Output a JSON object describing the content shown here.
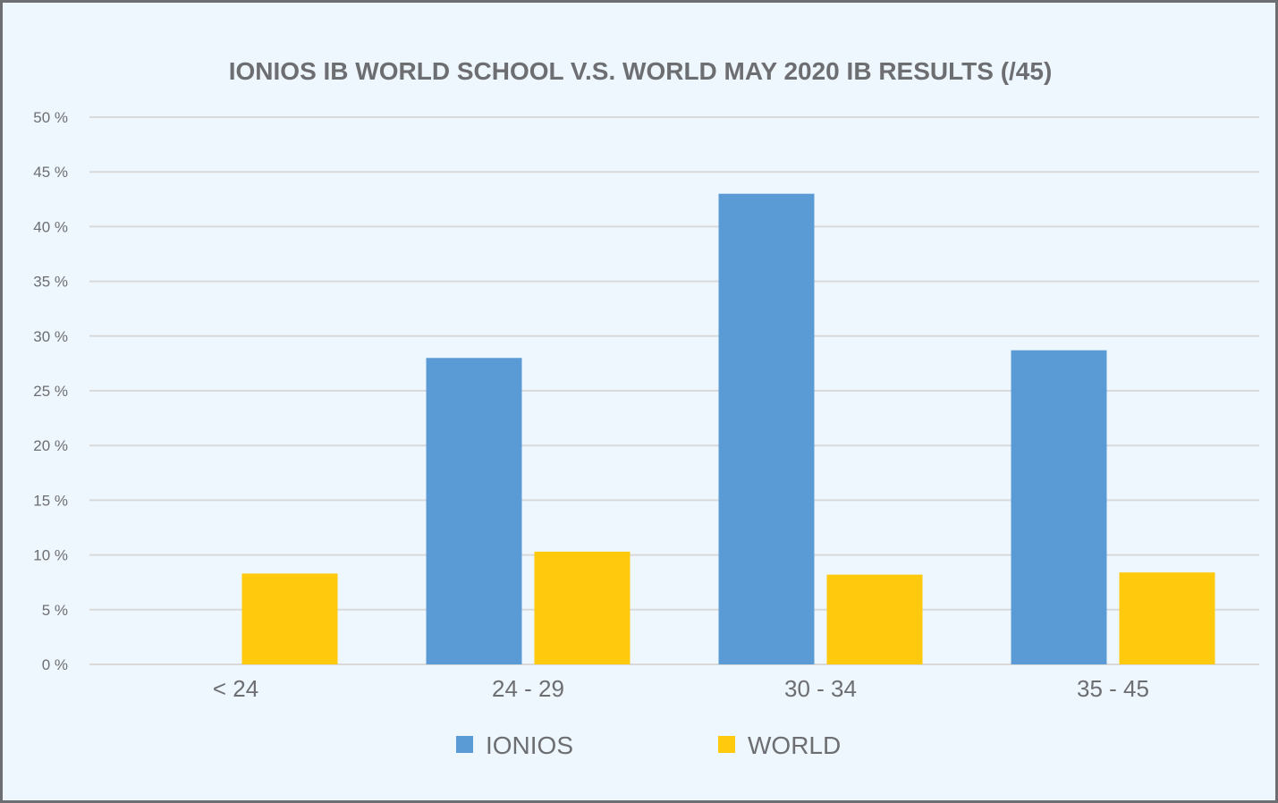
{
  "chart_data": {
    "type": "bar",
    "title": "IONIOS IB WORLD SCHOOL V.S. WORLD MAY 2020 IB RESULTS (/45)",
    "categories": [
      "< 24",
      "24 - 29",
      "30 - 34",
      "35 - 45"
    ],
    "series": [
      {
        "name": "IONIOS",
        "values": [
          0,
          28,
          43,
          28.7
        ],
        "color": "#5b9bd5"
      },
      {
        "name": "WORLD",
        "values": [
          8.3,
          10.3,
          8.2,
          8.4
        ],
        "color": "#ffc90e"
      }
    ],
    "ylim": [
      0,
      50
    ],
    "yticks": [
      "0 %",
      "5 %",
      "10 %",
      "15 %",
      "20 %",
      "25 %",
      "30 %",
      "35 %",
      "40 %",
      "45 %",
      "50 %"
    ],
    "grid": true,
    "legend_position": "bottom",
    "colors": {
      "background": "#eef7fd",
      "grid": "#d9d9d9",
      "text": "#6d6e71",
      "frame": "#6d6e71"
    }
  }
}
